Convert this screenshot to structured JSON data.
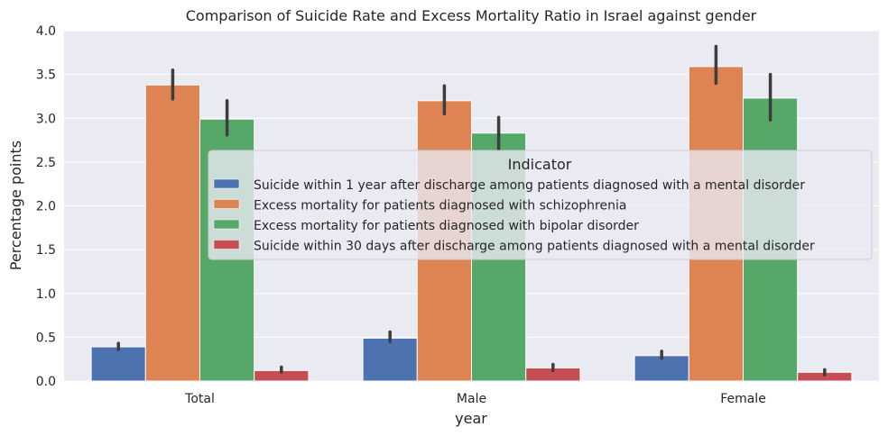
{
  "chart_data": {
    "type": "bar",
    "title": "Comparison of Suicide Rate and Excess Mortality Ratio in Israel against gender",
    "xlabel": "year",
    "ylabel": "Percentage points",
    "ylim": [
      0,
      4.0
    ],
    "yticks": [
      "0.0",
      "0.5",
      "1.0",
      "1.5",
      "2.0",
      "2.5",
      "3.0",
      "3.5",
      "4.0"
    ],
    "categories": [
      "Total",
      "Male",
      "Female"
    ],
    "legend": {
      "title": "Indicator",
      "placement": "center-right"
    },
    "grid": true,
    "series": [
      {
        "name": "Suicide within 1 year after discharge among patients diagnosed with a mental disorder",
        "color": "#4c72b0",
        "values": [
          0.39,
          0.49,
          0.29
        ],
        "error_low": [
          0.36,
          0.45,
          0.26
        ],
        "error_high": [
          0.43,
          0.56,
          0.34
        ]
      },
      {
        "name": "Excess mortality for patients diagnosed with schizophrenia",
        "color": "#dd8452",
        "values": [
          3.38,
          3.2,
          3.59
        ],
        "error_low": [
          3.22,
          3.05,
          3.4
        ],
        "error_high": [
          3.55,
          3.37,
          3.82
        ]
      },
      {
        "name": "Excess mortality for patients diagnosed with bipolar disorder",
        "color": "#55a868",
        "values": [
          2.99,
          2.83,
          3.23
        ],
        "error_low": [
          2.81,
          2.64,
          2.98
        ],
        "error_high": [
          3.2,
          3.01,
          3.5
        ]
      },
      {
        "name": "Suicide within 30 days after discharge among patients diagnosed with a mental disorder",
        "color": "#c44e52",
        "values": [
          0.12,
          0.15,
          0.1
        ],
        "error_low": [
          0.1,
          0.12,
          0.07
        ],
        "error_high": [
          0.16,
          0.19,
          0.13
        ]
      }
    ]
  }
}
